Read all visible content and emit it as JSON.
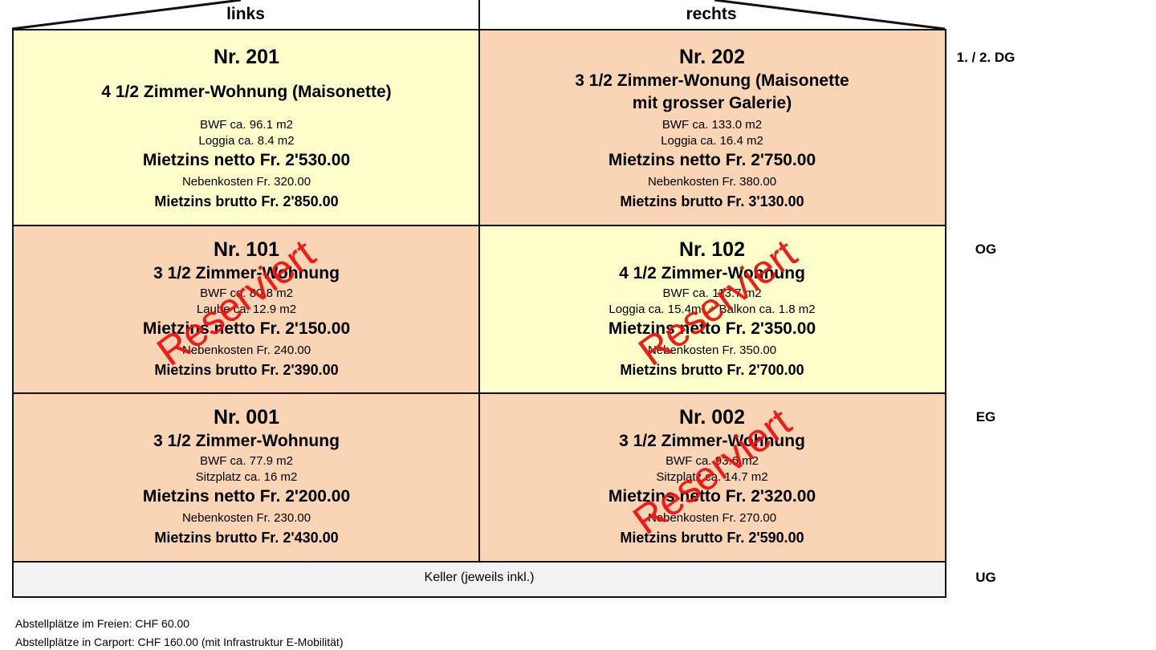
{
  "columns": {
    "left": "links",
    "right": "rechts"
  },
  "floors": {
    "dg": "1. / 2. DG",
    "og": "OG",
    "eg": "EG",
    "ug": "UG"
  },
  "colors": {
    "available": "#ffffcc",
    "other": "#f9d5b5",
    "stamp": "#f01010"
  },
  "units": {
    "u201": {
      "nr": "Nr. 201",
      "title": "4 1/2 Zimmer-Wohnung (Maisonette)",
      "bwf": "BWF ca. 96.1 m2",
      "extra": "Loggia ca. 8.4 m2",
      "netto": "Mietzins netto Fr. 2'530.00",
      "nk": "Nebenkosten Fr. 320.00",
      "brutto": "Mietzins brutto Fr. 2'850.00"
    },
    "u202": {
      "nr": "Nr. 202",
      "title": "3 1/2 Zimmer-Wonung (Maisonette",
      "title2": "mit grosser Galerie)",
      "bwf": "BWF ca. 133.0 m2",
      "extra": "Loggia ca. 16.4 m2",
      "netto": "Mietzins netto Fr. 2'750.00",
      "nk": "Nebenkosten Fr. 380.00",
      "brutto": "Mietzins brutto Fr. 3'130.00"
    },
    "u101": {
      "nr": "Nr. 101",
      "title": "3 1/2 Zimmer-Wohnung",
      "bwf": "BWF ca. 80.8 m2",
      "extra": "Laube ca. 12.9 m2",
      "netto": "Mietzins netto Fr. 2'150.00",
      "nk": "Nebenkosten Fr. 240.00",
      "brutto": "Mietzins brutto Fr. 2'390.00",
      "stamp": "Reserviert"
    },
    "u102": {
      "nr": "Nr. 102",
      "title": "4 1/2 Zimmer-Wohnung",
      "bwf": "BWF ca. 113.7 m2",
      "extra": "Loggia ca. 15.4m² + Balkon ca. 1.8 m2",
      "netto": "Mietzins netto Fr. 2'350.00",
      "nk": "Nebenkosten Fr. 350.00",
      "brutto": "Mietzins brutto Fr. 2'700.00",
      "stamp": "Reserviert"
    },
    "u001": {
      "nr": "Nr. 001",
      "title": "3 1/2 Zimmer-Wohnung",
      "bwf": "BWF ca. 77.9 m2",
      "extra": "Sitzplatz ca. 16 m2",
      "netto": "Mietzins netto Fr. 2'200.00",
      "nk": "Nebenkosten Fr. 230.00",
      "brutto": "Mietzins brutto Fr. 2'430.00"
    },
    "u002": {
      "nr": "Nr. 002",
      "title": "3 1/2 Zimmer-Wohnung",
      "bwf": "BWF ca. 93.6 m2",
      "extra": "Sitzplatz ca. 14.7 m2",
      "netto": "Mietzins netto Fr. 2'320.00",
      "nk": "Nebenkosten Fr. 270.00",
      "brutto": "Mietzins brutto Fr. 2'590.00",
      "stamp": "Reserviert"
    }
  },
  "keller": "Keller (jeweils inkl.)",
  "notes": [
    "Abstellplätze im Freien: CHF 60.00",
    "Abstellplätze in Carport: CHF 160.00 (mit Infrastruktur E-Mobilität)"
  ]
}
